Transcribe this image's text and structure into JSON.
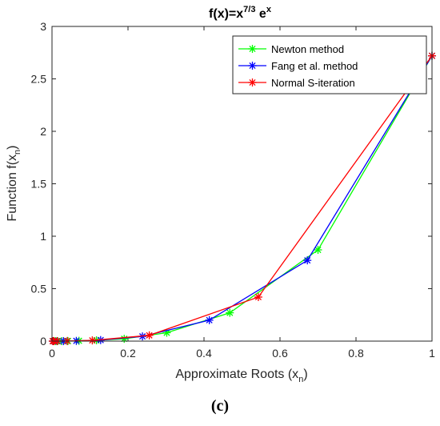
{
  "caption": "(c)",
  "chart_data": {
    "type": "line",
    "title": {
      "base": "f(x)=x",
      "exp1": "7/3",
      "mid": " e",
      "exp2": "x"
    },
    "xlabel": {
      "base": "Approximate Roots (x",
      "sub": "n",
      "close": ")"
    },
    "ylabel": {
      "base": "Function f(x",
      "sub": "n",
      "close": ")"
    },
    "xlim": [
      0,
      1
    ],
    "ylim": [
      0,
      3
    ],
    "xticks": [
      0,
      0.2,
      0.4,
      0.6,
      0.8,
      1
    ],
    "xtick_labels": [
      "0",
      "0.2",
      "0.4",
      "0.6",
      "0.8",
      "1"
    ],
    "yticks": [
      0,
      0.5,
      1,
      1.5,
      2,
      2.5,
      3
    ],
    "ytick_labels": [
      "0",
      "0.5",
      "1",
      "1.5",
      "2",
      "2.5",
      "3"
    ],
    "grid": false,
    "legend_position": "top-right",
    "marker": "asterisk",
    "series": [
      {
        "name": "Newton method",
        "color": "#00ff00",
        "x": [
          1.0,
          0.7,
          0.468,
          0.302,
          0.19,
          0.117,
          0.071,
          0.042,
          0.025,
          0.015,
          0.009,
          0.005,
          0.003
        ],
        "y": [
          2.72,
          0.87,
          0.27,
          0.08,
          0.022,
          0.008,
          0.003,
          0.001,
          0.0,
          0.0,
          0.0,
          0.0,
          0.0
        ]
      },
      {
        "name": "Fang et al. method",
        "color": "#0000ff",
        "x": [
          1.0,
          0.672,
          0.414,
          0.238,
          0.128,
          0.064,
          0.03,
          0.013,
          0.005,
          0.002
        ],
        "y": [
          2.72,
          0.77,
          0.2,
          0.045,
          0.01,
          0.002,
          0.0,
          0.0,
          0.0,
          0.0
        ]
      },
      {
        "name": "Normal S-iteration",
        "color": "#ff0000",
        "x": [
          1.0,
          0.543,
          0.256,
          0.106,
          0.04,
          0.014,
          0.005,
          0.002
        ],
        "y": [
          2.72,
          0.42,
          0.055,
          0.007,
          0.001,
          0.0,
          0.0,
          0.0
        ]
      }
    ]
  }
}
